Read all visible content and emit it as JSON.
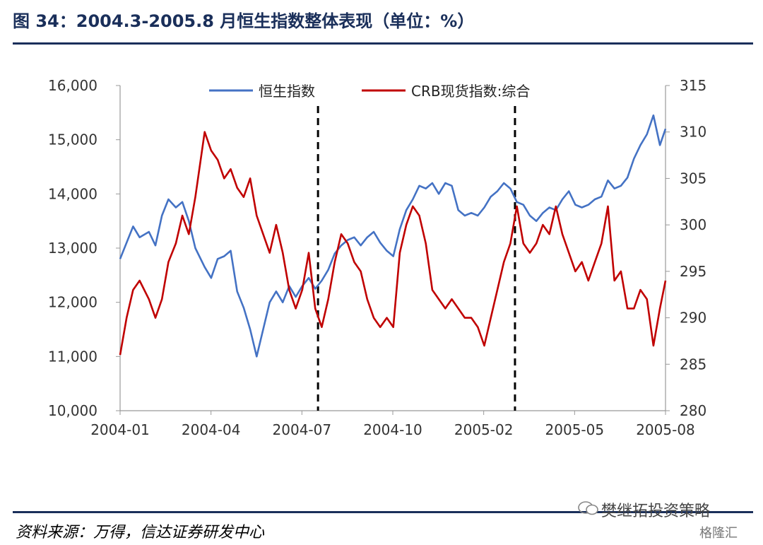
{
  "header": {
    "title": "图 34：2004.3-2005.8 月恒生指数整体表现（单位：%）"
  },
  "footer": {
    "source": "资料来源：万得，信达证券研发中心",
    "watermark": "樊继拓投资策略",
    "watermark2": "格隆汇"
  },
  "colors": {
    "hsi": "#4472c4",
    "crb": "#c00000",
    "rule": "#1a2f5a"
  },
  "chart_data": {
    "type": "line",
    "title": "",
    "x_tick_labels": [
      "2004-01",
      "2004-04",
      "2004-07",
      "2004-10",
      "2005-02",
      "2005-05",
      "2005-08"
    ],
    "x_range": [
      "2004-01-01",
      "2005-08-10"
    ],
    "y_left": {
      "range": [
        10000,
        16000
      ],
      "ticks": [
        "10,000",
        "11,000",
        "12,000",
        "13,000",
        "14,000",
        "15,000",
        "16,000"
      ]
    },
    "y_right": {
      "range": [
        280,
        315
      ],
      "ticks": [
        "280",
        "285",
        "290",
        "295",
        "300",
        "305",
        "310",
        "315"
      ]
    },
    "legend_position": "top",
    "vertical_markers": [
      "2004-08-01",
      "2005-03-01"
    ],
    "series": [
      {
        "name": "恒生指数",
        "axis": "left",
        "points": [
          [
            "2004-01-01",
            12800
          ],
          [
            "2004-01-08",
            13100
          ],
          [
            "2004-01-15",
            13400
          ],
          [
            "2004-01-22",
            13200
          ],
          [
            "2004-02-01",
            13300
          ],
          [
            "2004-02-08",
            13050
          ],
          [
            "2004-02-15",
            13600
          ],
          [
            "2004-02-22",
            13900
          ],
          [
            "2004-03-01",
            13750
          ],
          [
            "2004-03-08",
            13850
          ],
          [
            "2004-03-15",
            13500
          ],
          [
            "2004-03-22",
            13000
          ],
          [
            "2004-04-01",
            12650
          ],
          [
            "2004-04-08",
            12450
          ],
          [
            "2004-04-15",
            12800
          ],
          [
            "2004-04-22",
            12850
          ],
          [
            "2004-04-29",
            12950
          ],
          [
            "2004-05-06",
            12200
          ],
          [
            "2004-05-13",
            11900
          ],
          [
            "2004-05-20",
            11500
          ],
          [
            "2004-05-27",
            11000
          ],
          [
            "2004-06-03",
            11500
          ],
          [
            "2004-06-10",
            12000
          ],
          [
            "2004-06-17",
            12200
          ],
          [
            "2004-06-24",
            12000
          ],
          [
            "2004-07-01",
            12300
          ],
          [
            "2004-07-08",
            12100
          ],
          [
            "2004-07-15",
            12300
          ],
          [
            "2004-07-22",
            12450
          ],
          [
            "2004-07-29",
            12250
          ],
          [
            "2004-08-05",
            12400
          ],
          [
            "2004-08-12",
            12600
          ],
          [
            "2004-08-19",
            12900
          ],
          [
            "2004-08-26",
            13050
          ],
          [
            "2004-09-02",
            13150
          ],
          [
            "2004-09-09",
            13200
          ],
          [
            "2004-09-16",
            13050
          ],
          [
            "2004-09-23",
            13200
          ],
          [
            "2004-09-30",
            13300
          ],
          [
            "2004-10-07",
            13100
          ],
          [
            "2004-10-14",
            12950
          ],
          [
            "2004-10-21",
            12850
          ],
          [
            "2004-10-28",
            13350
          ],
          [
            "2004-11-04",
            13700
          ],
          [
            "2004-11-11",
            13900
          ],
          [
            "2004-11-18",
            14150
          ],
          [
            "2004-11-25",
            14100
          ],
          [
            "2004-12-02",
            14200
          ],
          [
            "2004-12-09",
            14000
          ],
          [
            "2004-12-16",
            14200
          ],
          [
            "2004-12-23",
            14150
          ],
          [
            "2004-12-30",
            13700
          ],
          [
            "2005-01-06",
            13600
          ],
          [
            "2005-01-13",
            13650
          ],
          [
            "2005-01-20",
            13600
          ],
          [
            "2005-01-27",
            13750
          ],
          [
            "2005-02-03",
            13950
          ],
          [
            "2005-02-10",
            14050
          ],
          [
            "2005-02-17",
            14200
          ],
          [
            "2005-02-24",
            14100
          ],
          [
            "2005-03-03",
            13850
          ],
          [
            "2005-03-10",
            13800
          ],
          [
            "2005-03-17",
            13600
          ],
          [
            "2005-03-24",
            13500
          ],
          [
            "2005-03-31",
            13650
          ],
          [
            "2005-04-07",
            13750
          ],
          [
            "2005-04-14",
            13700
          ],
          [
            "2005-04-21",
            13900
          ],
          [
            "2005-04-28",
            14050
          ],
          [
            "2005-05-05",
            13800
          ],
          [
            "2005-05-12",
            13750
          ],
          [
            "2005-05-19",
            13800
          ],
          [
            "2005-05-26",
            13900
          ],
          [
            "2005-06-02",
            13950
          ],
          [
            "2005-06-09",
            14250
          ],
          [
            "2005-06-16",
            14100
          ],
          [
            "2005-06-23",
            14150
          ],
          [
            "2005-06-30",
            14300
          ],
          [
            "2005-07-07",
            14650
          ],
          [
            "2005-07-14",
            14900
          ],
          [
            "2005-07-21",
            15100
          ],
          [
            "2005-07-28",
            15450
          ],
          [
            "2005-08-04",
            14900
          ],
          [
            "2005-08-10",
            15200
          ]
        ]
      },
      {
        "name": "CRB现货指数:综合",
        "axis": "right",
        "points": [
          [
            "2004-01-01",
            286
          ],
          [
            "2004-01-08",
            290
          ],
          [
            "2004-01-15",
            293
          ],
          [
            "2004-01-22",
            294
          ],
          [
            "2004-02-01",
            292
          ],
          [
            "2004-02-08",
            290
          ],
          [
            "2004-02-15",
            292
          ],
          [
            "2004-02-22",
            296
          ],
          [
            "2004-03-01",
            298
          ],
          [
            "2004-03-08",
            301
          ],
          [
            "2004-03-15",
            299
          ],
          [
            "2004-03-22",
            303
          ],
          [
            "2004-04-01",
            310
          ],
          [
            "2004-04-08",
            308
          ],
          [
            "2004-04-15",
            307
          ],
          [
            "2004-04-22",
            305
          ],
          [
            "2004-04-29",
            306
          ],
          [
            "2004-05-06",
            304
          ],
          [
            "2004-05-13",
            303
          ],
          [
            "2004-05-20",
            305
          ],
          [
            "2004-05-27",
            301
          ],
          [
            "2004-06-03",
            299
          ],
          [
            "2004-06-10",
            297
          ],
          [
            "2004-06-17",
            300
          ],
          [
            "2004-06-24",
            297
          ],
          [
            "2004-07-01",
            293
          ],
          [
            "2004-07-08",
            291
          ],
          [
            "2004-07-15",
            293
          ],
          [
            "2004-07-22",
            297
          ],
          [
            "2004-07-29",
            291
          ],
          [
            "2004-08-05",
            289
          ],
          [
            "2004-08-12",
            292
          ],
          [
            "2004-08-19",
            296
          ],
          [
            "2004-08-26",
            299
          ],
          [
            "2004-09-02",
            298
          ],
          [
            "2004-09-09",
            296
          ],
          [
            "2004-09-16",
            295
          ],
          [
            "2004-09-23",
            292
          ],
          [
            "2004-09-30",
            290
          ],
          [
            "2004-10-07",
            289
          ],
          [
            "2004-10-14",
            290
          ],
          [
            "2004-10-21",
            289
          ],
          [
            "2004-10-28",
            297
          ],
          [
            "2004-11-04",
            300
          ],
          [
            "2004-11-11",
            302
          ],
          [
            "2004-11-18",
            301
          ],
          [
            "2004-11-25",
            298
          ],
          [
            "2004-12-02",
            293
          ],
          [
            "2004-12-09",
            292
          ],
          [
            "2004-12-16",
            291
          ],
          [
            "2004-12-23",
            292
          ],
          [
            "2004-12-30",
            291
          ],
          [
            "2005-01-06",
            290
          ],
          [
            "2005-01-13",
            290
          ],
          [
            "2005-01-20",
            289
          ],
          [
            "2005-01-27",
            287
          ],
          [
            "2005-02-03",
            290
          ],
          [
            "2005-02-10",
            293
          ],
          [
            "2005-02-17",
            296
          ],
          [
            "2005-02-24",
            298
          ],
          [
            "2005-03-03",
            302
          ],
          [
            "2005-03-10",
            298
          ],
          [
            "2005-03-17",
            297
          ],
          [
            "2005-03-24",
            298
          ],
          [
            "2005-03-31",
            300
          ],
          [
            "2005-04-07",
            299
          ],
          [
            "2005-04-14",
            302
          ],
          [
            "2005-04-21",
            299
          ],
          [
            "2005-04-28",
            297
          ],
          [
            "2005-05-05",
            295
          ],
          [
            "2005-05-12",
            296
          ],
          [
            "2005-05-19",
            294
          ],
          [
            "2005-05-26",
            296
          ],
          [
            "2005-06-02",
            298
          ],
          [
            "2005-06-09",
            302
          ],
          [
            "2005-06-16",
            294
          ],
          [
            "2005-06-23",
            295
          ],
          [
            "2005-06-30",
            291
          ],
          [
            "2005-07-07",
            291
          ],
          [
            "2005-07-14",
            293
          ],
          [
            "2005-07-21",
            292
          ],
          [
            "2005-07-28",
            287
          ],
          [
            "2005-08-04",
            291
          ],
          [
            "2005-08-10",
            294
          ]
        ]
      }
    ]
  }
}
